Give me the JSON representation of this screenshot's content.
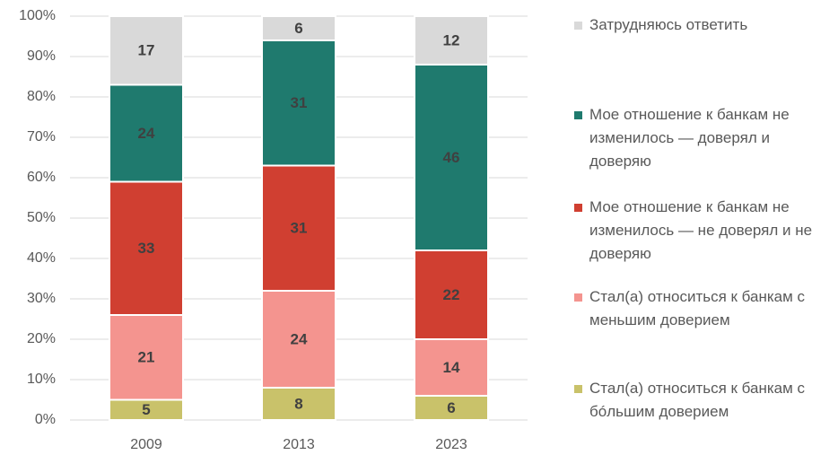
{
  "chart_data": {
    "type": "stacked_bar",
    "categories": [
      "2009",
      "2013",
      "2023"
    ],
    "series": [
      {
        "name": "Стал(а) относиться к банкам с бóльшим доверием",
        "color": "#c9c26a",
        "values": [
          5,
          8,
          6
        ]
      },
      {
        "name": "Стал(а) относиться к банкам с меньшим доверием",
        "color": "#f4948f",
        "values": [
          21,
          24,
          14
        ]
      },
      {
        "name": "Мое отношение к банкам не изменилось — не доверял и не доверяю",
        "color": "#d03f31",
        "values": [
          33,
          31,
          22
        ]
      },
      {
        "name": "Мое отношение к банкам не изменилось — доверял и доверяю",
        "color": "#1f7a6e",
        "values": [
          24,
          31,
          46
        ]
      },
      {
        "name": "Затрудняюсь ответить",
        "color": "#d9d9d9",
        "values": [
          17,
          6,
          12
        ]
      }
    ],
    "ylim": [
      0,
      100
    ],
    "yticks": [
      {
        "value": 0,
        "label": "0%"
      },
      {
        "value": 10,
        "label": "10%"
      },
      {
        "value": 20,
        "label": "20%"
      },
      {
        "value": 30,
        "label": "30%"
      },
      {
        "value": 40,
        "label": "40%"
      },
      {
        "value": 50,
        "label": "50%"
      },
      {
        "value": 60,
        "label": "60%"
      },
      {
        "value": 70,
        "label": "70%"
      },
      {
        "value": 80,
        "label": "80%"
      },
      {
        "value": 90,
        "label": "90%"
      },
      {
        "value": 100,
        "label": "100%"
      }
    ],
    "grid": true
  }
}
